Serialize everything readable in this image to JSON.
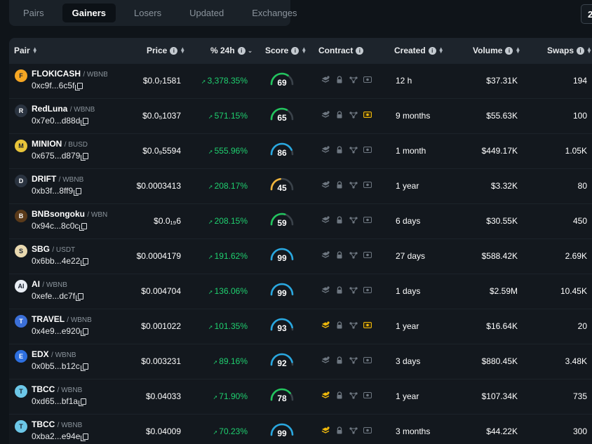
{
  "tabs": [
    {
      "label": "Pairs",
      "active": false
    },
    {
      "label": "Gainers",
      "active": true
    },
    {
      "label": "Losers",
      "active": false
    },
    {
      "label": "Updated",
      "active": false
    },
    {
      "label": "Exchanges",
      "active": false
    }
  ],
  "corner_label": "2",
  "columns": {
    "pair": "Pair",
    "price": "Price",
    "change": "% 24h",
    "score": "Score",
    "contract": "Contract",
    "created": "Created",
    "volume": "Volume",
    "swaps": "Swaps"
  },
  "colors": {
    "gain": "#1fcf6f",
    "gauge_green": "#22c55e",
    "gauge_blue": "#29a8e0",
    "gauge_orange": "#f0b43c",
    "gold": "#f0b90b"
  },
  "rows": [
    {
      "name": "FLOKICASH",
      "quote": "WBNB",
      "address": "0xc9f...6c5f",
      "price": "$0.0₇1581",
      "change": "3,378.35%",
      "score": 69,
      "gauge_color": "gauge_green",
      "created": "12 h",
      "volume": "$37.31K",
      "swaps": "194",
      "avatar_text": "F",
      "avatar_color": "#f5a623",
      "locked_highlight": false,
      "renounced_highlight": false
    },
    {
      "name": "RedLuna",
      "quote": "WBNB",
      "address": "0x7e0...d88d",
      "price": "$0.0₅1037",
      "change": "571.15%",
      "score": 65,
      "gauge_color": "gauge_green",
      "created": "9 months",
      "volume": "$55.63K",
      "swaps": "100",
      "avatar_text": "R",
      "avatar_color": "#2a3340",
      "locked_highlight": false,
      "renounced_highlight": true
    },
    {
      "name": "MINION",
      "quote": "BUSD",
      "address": "0x675...d879",
      "price": "$0.0₉5594",
      "change": "555.96%",
      "score": 86,
      "gauge_color": "gauge_blue",
      "created": "1 month",
      "volume": "$449.17K",
      "swaps": "1.05K",
      "avatar_text": "M",
      "avatar_color": "#e8c43a",
      "locked_highlight": false,
      "renounced_highlight": false
    },
    {
      "name": "DRIFT",
      "quote": "WBNB",
      "address": "0xb3f...8ff9",
      "price": "$0.0003413",
      "change": "208.17%",
      "score": 45,
      "gauge_color": "gauge_orange",
      "created": "1 year",
      "volume": "$3.32K",
      "swaps": "80",
      "avatar_text": "D",
      "avatar_color": "#2a3340",
      "locked_highlight": false,
      "renounced_highlight": false
    },
    {
      "name": "BNBsongoku",
      "quote": "WBNB",
      "address": "0x94c...8c0c",
      "price": "$0.0₁₉6",
      "change": "208.15%",
      "score": 59,
      "gauge_color": "gauge_green",
      "created": "6 days",
      "volume": "$30.55K",
      "swaps": "450",
      "avatar_text": "B",
      "avatar_color": "#5a3a1a",
      "locked_highlight": false,
      "renounced_highlight": false
    },
    {
      "name": "SBG",
      "quote": "USDT",
      "address": "0x6bb...4e22",
      "price": "$0.0004179",
      "change": "191.62%",
      "score": 99,
      "gauge_color": "gauge_blue",
      "created": "27 days",
      "volume": "$588.42K",
      "swaps": "2.69K",
      "avatar_text": "S",
      "avatar_color": "#e9d9b0",
      "locked_highlight": false,
      "renounced_highlight": false
    },
    {
      "name": "AI",
      "quote": "WBNB",
      "address": "0xefe...dc7f",
      "price": "$0.004704",
      "change": "136.06%",
      "score": 99,
      "gauge_color": "gauge_blue",
      "created": "1 days",
      "volume": "$2.59M",
      "swaps": "10.45K",
      "avatar_text": "AI",
      "avatar_color": "#e9eef5",
      "locked_highlight": false,
      "renounced_highlight": false
    },
    {
      "name": "TRAVEL",
      "quote": "WBNB",
      "address": "0x4e9...e920",
      "price": "$0.001022",
      "change": "101.35%",
      "score": 93,
      "gauge_color": "gauge_blue",
      "created": "1 year",
      "volume": "$16.64K",
      "swaps": "20",
      "avatar_text": "T",
      "avatar_color": "#3b6fd8",
      "locked_highlight": true,
      "renounced_highlight": true
    },
    {
      "name": "EDX",
      "quote": "WBNB",
      "address": "0x0b5...b12c",
      "price": "$0.003231",
      "change": "89.16%",
      "score": 92,
      "gauge_color": "gauge_blue",
      "created": "3 days",
      "volume": "$880.45K",
      "swaps": "3.48K",
      "avatar_text": "E",
      "avatar_color": "#2d6fe0",
      "locked_highlight": false,
      "renounced_highlight": false
    },
    {
      "name": "TBCC",
      "quote": "WBNB",
      "address": "0xd65...bf1a",
      "price": "$0.04033",
      "change": "71.90%",
      "score": 78,
      "gauge_color": "gauge_green",
      "created": "1 year",
      "volume": "$107.34K",
      "swaps": "735",
      "avatar_text": "T",
      "avatar_color": "#6cc7e8",
      "locked_highlight": true,
      "renounced_highlight": false
    },
    {
      "name": "TBCC",
      "quote": "WBNB",
      "address": "0xba2...e94e",
      "price": "$0.04009",
      "change": "70.23%",
      "score": 99,
      "gauge_color": "gauge_blue",
      "created": "3 months",
      "volume": "$44.22K",
      "swaps": "300",
      "avatar_text": "T",
      "avatar_color": "#6cc7e8",
      "locked_highlight": true,
      "renounced_highlight": false
    }
  ]
}
